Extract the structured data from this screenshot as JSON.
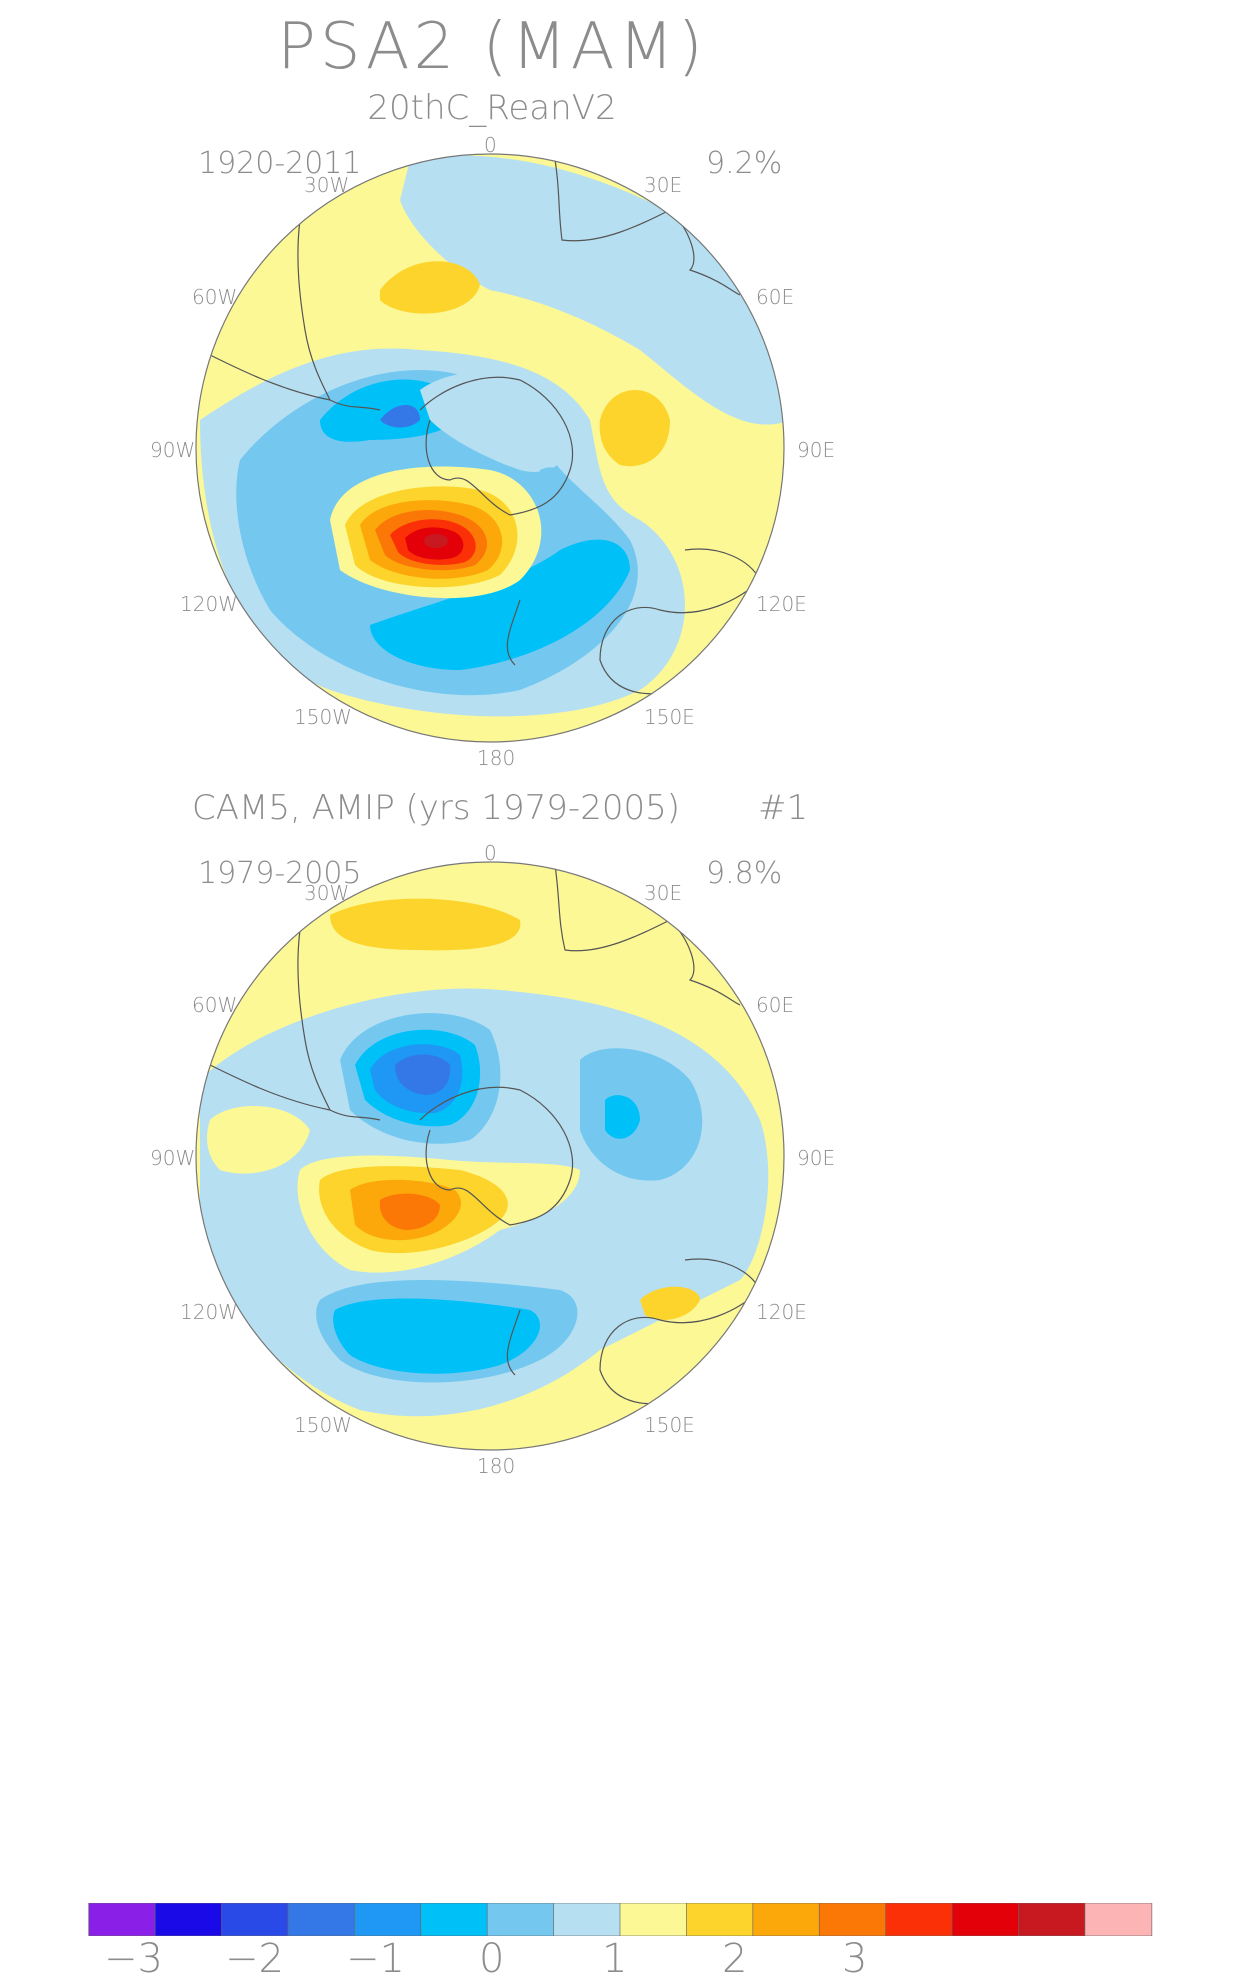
{
  "title": "PSA2 (MAM)",
  "panels": [
    {
      "subtitle": "20thC_ReanV2",
      "period": "1920-2011",
      "variance": "9.2%",
      "number": ""
    },
    {
      "subtitle": "CAM5, AMIP (yrs 1979-2005)",
      "period": "1979-2005",
      "variance": "9.8%",
      "number": "#1"
    }
  ],
  "longitude_labels": {
    "lon_0": "0",
    "lon_30e": "30E",
    "lon_60e": "60E",
    "lon_90e": "90E",
    "lon_120e": "120E",
    "lon_150e": "150E",
    "lon_180": "180",
    "lon_150w": "150W",
    "lon_120w": "120W",
    "lon_90w": "90W",
    "lon_60w": "60W",
    "lon_30w": "30W"
  },
  "colorbar": {
    "colors": [
      "#8a20e8",
      "#1a0ae8",
      "#2a4ae8",
      "#3478e8",
      "#1e98f4",
      "#00c0f8",
      "#74c8f0",
      "#b6dff2",
      "#fcf896",
      "#fcd42c",
      "#fca80a",
      "#fc7806",
      "#fc3006",
      "#e40008",
      "#c81820",
      "#fcb4b4"
    ],
    "ticks": [
      "−3",
      "−2",
      "−1",
      "0",
      "1",
      "2",
      "3"
    ]
  }
}
